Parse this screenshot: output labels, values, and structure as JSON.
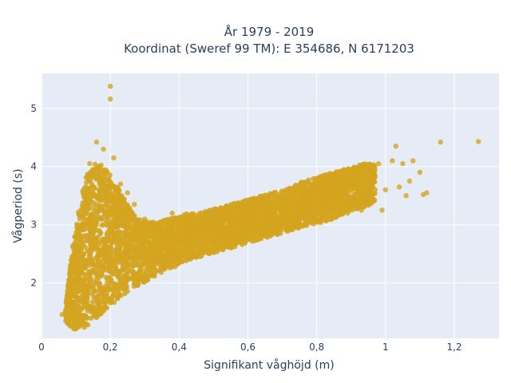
{
  "chart_data": {
    "type": "scatter",
    "title_line1": "År 1979 - 2019",
    "title_line2": "Koordinat (Sweref 99 TM): E 354686, N 6171203",
    "xlabel": "Signifikant våghöjd (m)",
    "ylabel": "Vågperiod (s)",
    "xlim": [
      0,
      1.33
    ],
    "ylim": [
      1.05,
      5.6
    ],
    "xticks": [
      0,
      0.2,
      0.4,
      0.6,
      0.8,
      1,
      1.2
    ],
    "xtick_labels": [
      "0",
      "0,2",
      "0,4",
      "0,6",
      "0,8",
      "1",
      "1,2"
    ],
    "yticks": [
      2,
      3,
      4,
      5
    ],
    "ytick_labels": [
      "2",
      "3",
      "4",
      "5"
    ],
    "grid": true,
    "plot_bg": "#e5ecf6",
    "grid_color": "#ffffff",
    "marker_color": "#d4a520",
    "series": [
      {
        "x": [
          0.2,
          0.2,
          0.16,
          0.18,
          0.21,
          0.14,
          0.15,
          0.17,
          0.23,
          0.25,
          0.13,
          0.12,
          0.19,
          0.22,
          0.27,
          0.3,
          0.35,
          0.38,
          0.45,
          0.5,
          0.55,
          0.62,
          0.68,
          0.72,
          0.78,
          0.82,
          0.86,
          0.9,
          0.95,
          0.98,
          1.02,
          1.05,
          1.08,
          1.1,
          1.12,
          1.16,
          1.27,
          1.03,
          0.97,
          0.94,
          0.99,
          1.06,
          1.11,
          0.1,
          0.08,
          0.06,
          0.07,
          0.09,
          0.11,
          0.12,
          0.14,
          0.16,
          0.18,
          0.22,
          0.26,
          0.31,
          0.33,
          0.4,
          0.47,
          0.53,
          0.58,
          0.65,
          0.74,
          0.8,
          0.85,
          0.88,
          0.92,
          0.96,
          1.0,
          1.04,
          1.07,
          0.11,
          0.13,
          0.15,
          0.17,
          0.19,
          0.21,
          0.24,
          0.28,
          0.32,
          0.36,
          0.42,
          0.48,
          0.52,
          0.57,
          0.6,
          0.66,
          0.7,
          0.76,
          0.84,
          0.89,
          0.93,
          0.1,
          0.12,
          0.14,
          0.16,
          0.18,
          0.2,
          0.23,
          0.29,
          0.34,
          0.39,
          0.44,
          0.49,
          0.54,
          0.59,
          0.64,
          0.69,
          0.75,
          0.81,
          0.87
        ],
        "y": [
          5.38,
          5.16,
          4.42,
          4.3,
          4.15,
          4.05,
          3.95,
          3.8,
          3.7,
          3.55,
          3.4,
          3.2,
          3.6,
          3.5,
          3.35,
          3.1,
          3.0,
          3.2,
          3.05,
          3.1,
          3.15,
          3.3,
          3.35,
          3.45,
          3.55,
          3.7,
          3.85,
          3.95,
          4.0,
          4.05,
          4.1,
          4.05,
          4.1,
          3.9,
          3.55,
          4.42,
          4.43,
          4.35,
          3.6,
          3.45,
          3.25,
          3.5,
          3.52,
          1.4,
          1.48,
          1.46,
          1.35,
          1.55,
          1.7,
          1.9,
          2.1,
          2.3,
          2.4,
          2.55,
          2.6,
          2.45,
          2.7,
          2.75,
          2.8,
          2.85,
          2.9,
          2.95,
          3.05,
          3.2,
          3.3,
          3.35,
          3.5,
          3.55,
          3.6,
          3.65,
          3.75,
          1.25,
          1.3,
          1.5,
          1.6,
          1.75,
          1.85,
          2.0,
          2.15,
          2.25,
          2.35,
          2.5,
          2.55,
          2.65,
          2.7,
          2.8,
          2.85,
          2.95,
          3.0,
          3.1,
          3.2,
          3.25,
          2.6,
          2.8,
          3.0,
          3.1,
          3.0,
          2.9,
          2.75,
          2.55,
          2.65,
          2.7,
          2.75,
          2.85,
          2.95,
          3.05,
          3.1,
          3.15,
          3.25,
          3.3,
          3.4
        ]
      }
    ],
    "bands": [
      {
        "x": 0.07,
        "lo": 1.35,
        "hi": 1.6
      },
      {
        "x": 0.09,
        "lo": 1.2,
        "hi": 2.6
      },
      {
        "x": 0.11,
        "lo": 1.2,
        "hi": 3.3
      },
      {
        "x": 0.13,
        "lo": 1.25,
        "hi": 3.9
      },
      {
        "x": 0.15,
        "lo": 1.35,
        "hi": 4.05
      },
      {
        "x": 0.17,
        "lo": 1.45,
        "hi": 4.05
      },
      {
        "x": 0.19,
        "lo": 1.55,
        "hi": 3.95
      },
      {
        "x": 0.21,
        "lo": 1.65,
        "hi": 3.75
      },
      {
        "x": 0.23,
        "lo": 1.75,
        "hi": 3.55
      },
      {
        "x": 0.25,
        "lo": 1.85,
        "hi": 3.35
      },
      {
        "x": 0.28,
        "lo": 1.95,
        "hi": 3.1
      },
      {
        "x": 0.31,
        "lo": 2.05,
        "hi": 3.05
      },
      {
        "x": 0.34,
        "lo": 2.15,
        "hi": 3.05
      },
      {
        "x": 0.37,
        "lo": 2.25,
        "hi": 3.1
      },
      {
        "x": 0.4,
        "lo": 2.3,
        "hi": 3.15
      },
      {
        "x": 0.43,
        "lo": 2.4,
        "hi": 3.2
      },
      {
        "x": 0.46,
        "lo": 2.45,
        "hi": 3.2
      },
      {
        "x": 0.49,
        "lo": 2.5,
        "hi": 3.25
      },
      {
        "x": 0.52,
        "lo": 2.55,
        "hi": 3.3
      },
      {
        "x": 0.55,
        "lo": 2.6,
        "hi": 3.35
      },
      {
        "x": 0.58,
        "lo": 2.65,
        "hi": 3.4
      },
      {
        "x": 0.61,
        "lo": 2.7,
        "hi": 3.45
      },
      {
        "x": 0.64,
        "lo": 2.75,
        "hi": 3.5
      },
      {
        "x": 0.67,
        "lo": 2.8,
        "hi": 3.55
      },
      {
        "x": 0.7,
        "lo": 2.85,
        "hi": 3.6
      },
      {
        "x": 0.73,
        "lo": 2.9,
        "hi": 3.65
      },
      {
        "x": 0.76,
        "lo": 2.95,
        "hi": 3.75
      },
      {
        "x": 0.79,
        "lo": 3.0,
        "hi": 3.8
      },
      {
        "x": 0.82,
        "lo": 3.05,
        "hi": 3.85
      },
      {
        "x": 0.85,
        "lo": 3.1,
        "hi": 3.9
      },
      {
        "x": 0.88,
        "lo": 3.2,
        "hi": 3.95
      },
      {
        "x": 0.91,
        "lo": 3.25,
        "hi": 4.0
      },
      {
        "x": 0.94,
        "lo": 3.3,
        "hi": 4.05
      },
      {
        "x": 0.97,
        "lo": 3.4,
        "hi": 4.05
      }
    ]
  }
}
